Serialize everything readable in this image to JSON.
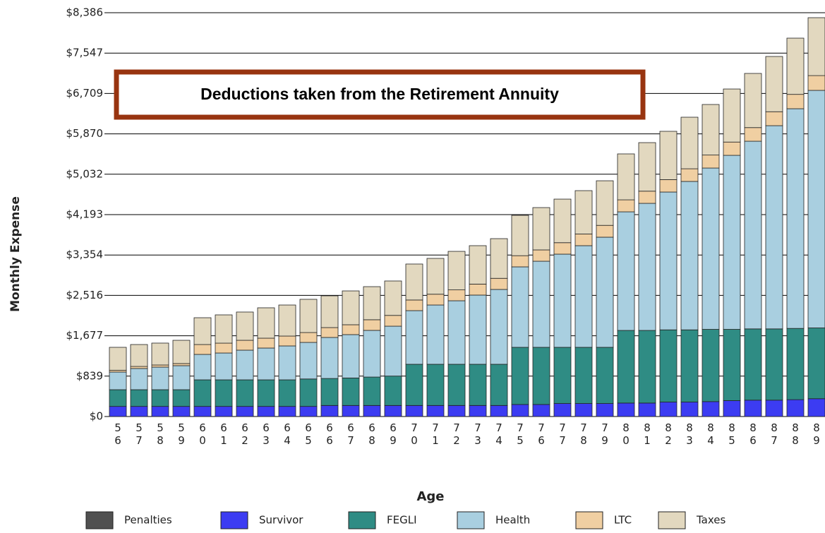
{
  "chart_data": {
    "type": "stacked_bar",
    "annotation": "Deductions taken from the Retirement Annuity",
    "x_label": "Age",
    "y_label": "Monthly Expense",
    "categories": [
      "56",
      "57",
      "58",
      "59",
      "60",
      "61",
      "62",
      "63",
      "64",
      "65",
      "66",
      "67",
      "68",
      "69",
      "70",
      "71",
      "72",
      "73",
      "74",
      "75",
      "76",
      "77",
      "78",
      "79",
      "80",
      "81",
      "82",
      "83",
      "84",
      "85",
      "86",
      "87",
      "88",
      "89"
    ],
    "series": [
      {
        "name": "Penalties",
        "color": "#505050",
        "values": [
          0,
          0,
          0,
          0,
          0,
          0,
          0,
          0,
          0,
          0,
          0,
          0,
          0,
          0,
          0,
          0,
          0,
          0,
          0,
          0,
          0,
          0,
          0,
          0,
          0,
          0,
          0,
          0,
          0,
          0,
          0,
          0,
          0,
          0
        ]
      },
      {
        "name": "Survivor",
        "color": "#3c3cf2",
        "values": [
          210,
          210,
          210,
          210,
          210,
          210,
          210,
          210,
          210,
          210,
          230,
          230,
          230,
          230,
          230,
          230,
          230,
          230,
          230,
          250,
          250,
          270,
          270,
          270,
          280,
          280,
          300,
          300,
          310,
          330,
          340,
          340,
          350,
          370
        ]
      },
      {
        "name": "FEGLI",
        "color": "#2f8c84",
        "values": [
          347,
          347,
          347,
          347,
          552,
          552,
          552,
          552,
          552,
          570,
          560,
          570,
          590,
          610,
          855,
          855,
          855,
          855,
          855,
          1187,
          1187,
          1167,
          1167,
          1167,
          1508,
          1508,
          1500,
          1500,
          1500,
          1480,
          1480,
          1480,
          1480,
          1470
        ]
      },
      {
        "name": "Health",
        "color": "#a9cfe0",
        "values": [
          367,
          440,
          469,
          499,
          528,
          557,
          616,
          660,
          704,
          759,
          852,
          901,
          969,
          1036,
          1114,
          1231,
          1319,
          1437,
          1554,
          1671,
          1788,
          1935,
          2111,
          2287,
          2463,
          2639,
          2862,
          3082,
          3350,
          3614,
          3897,
          4220,
          4562,
          4933
        ]
      },
      {
        "name": "LTC",
        "color": "#f0cfa2",
        "values": [
          36,
          43,
          44,
          44,
          205,
          205,
          205,
          205,
          205,
          205,
          205,
          205,
          221,
          224,
          221,
          224,
          226,
          228,
          231,
          232,
          235,
          238,
          242,
          246,
          249,
          253,
          258,
          263,
          270,
          276,
          283,
          290,
          298,
          307
        ]
      },
      {
        "name": "Taxes",
        "color": "#e2d8bf",
        "values": [
          477,
          455,
          455,
          483,
          557,
          587,
          587,
          631,
          645,
          690,
          660,
          703,
          687,
          715,
          747,
          744,
          800,
          798,
          824,
          838,
          879,
          905,
          901,
          926,
          954,
          1008,
          1003,
          1071,
          1050,
          1102,
          1125,
          1147,
          1168,
          1203
        ]
      }
    ],
    "ylim": [
      0,
      8386
    ],
    "yticks": [
      {
        "value": 0,
        "label": "$0"
      },
      {
        "value": 839,
        "label": "$839"
      },
      {
        "value": 1677,
        "label": "$1,677"
      },
      {
        "value": 2516,
        "label": "$2,516"
      },
      {
        "value": 3354,
        "label": "$3,354"
      },
      {
        "value": 4193,
        "label": "$4,193"
      },
      {
        "value": 5032,
        "label": "$5,032"
      },
      {
        "value": 5870,
        "label": "$5,870"
      },
      {
        "value": 6709,
        "label": "$6,709"
      },
      {
        "value": 7547,
        "label": "$7,547"
      },
      {
        "value": 8386,
        "label": "$8,386"
      }
    ],
    "grid": true,
    "legend": "bottom"
  }
}
